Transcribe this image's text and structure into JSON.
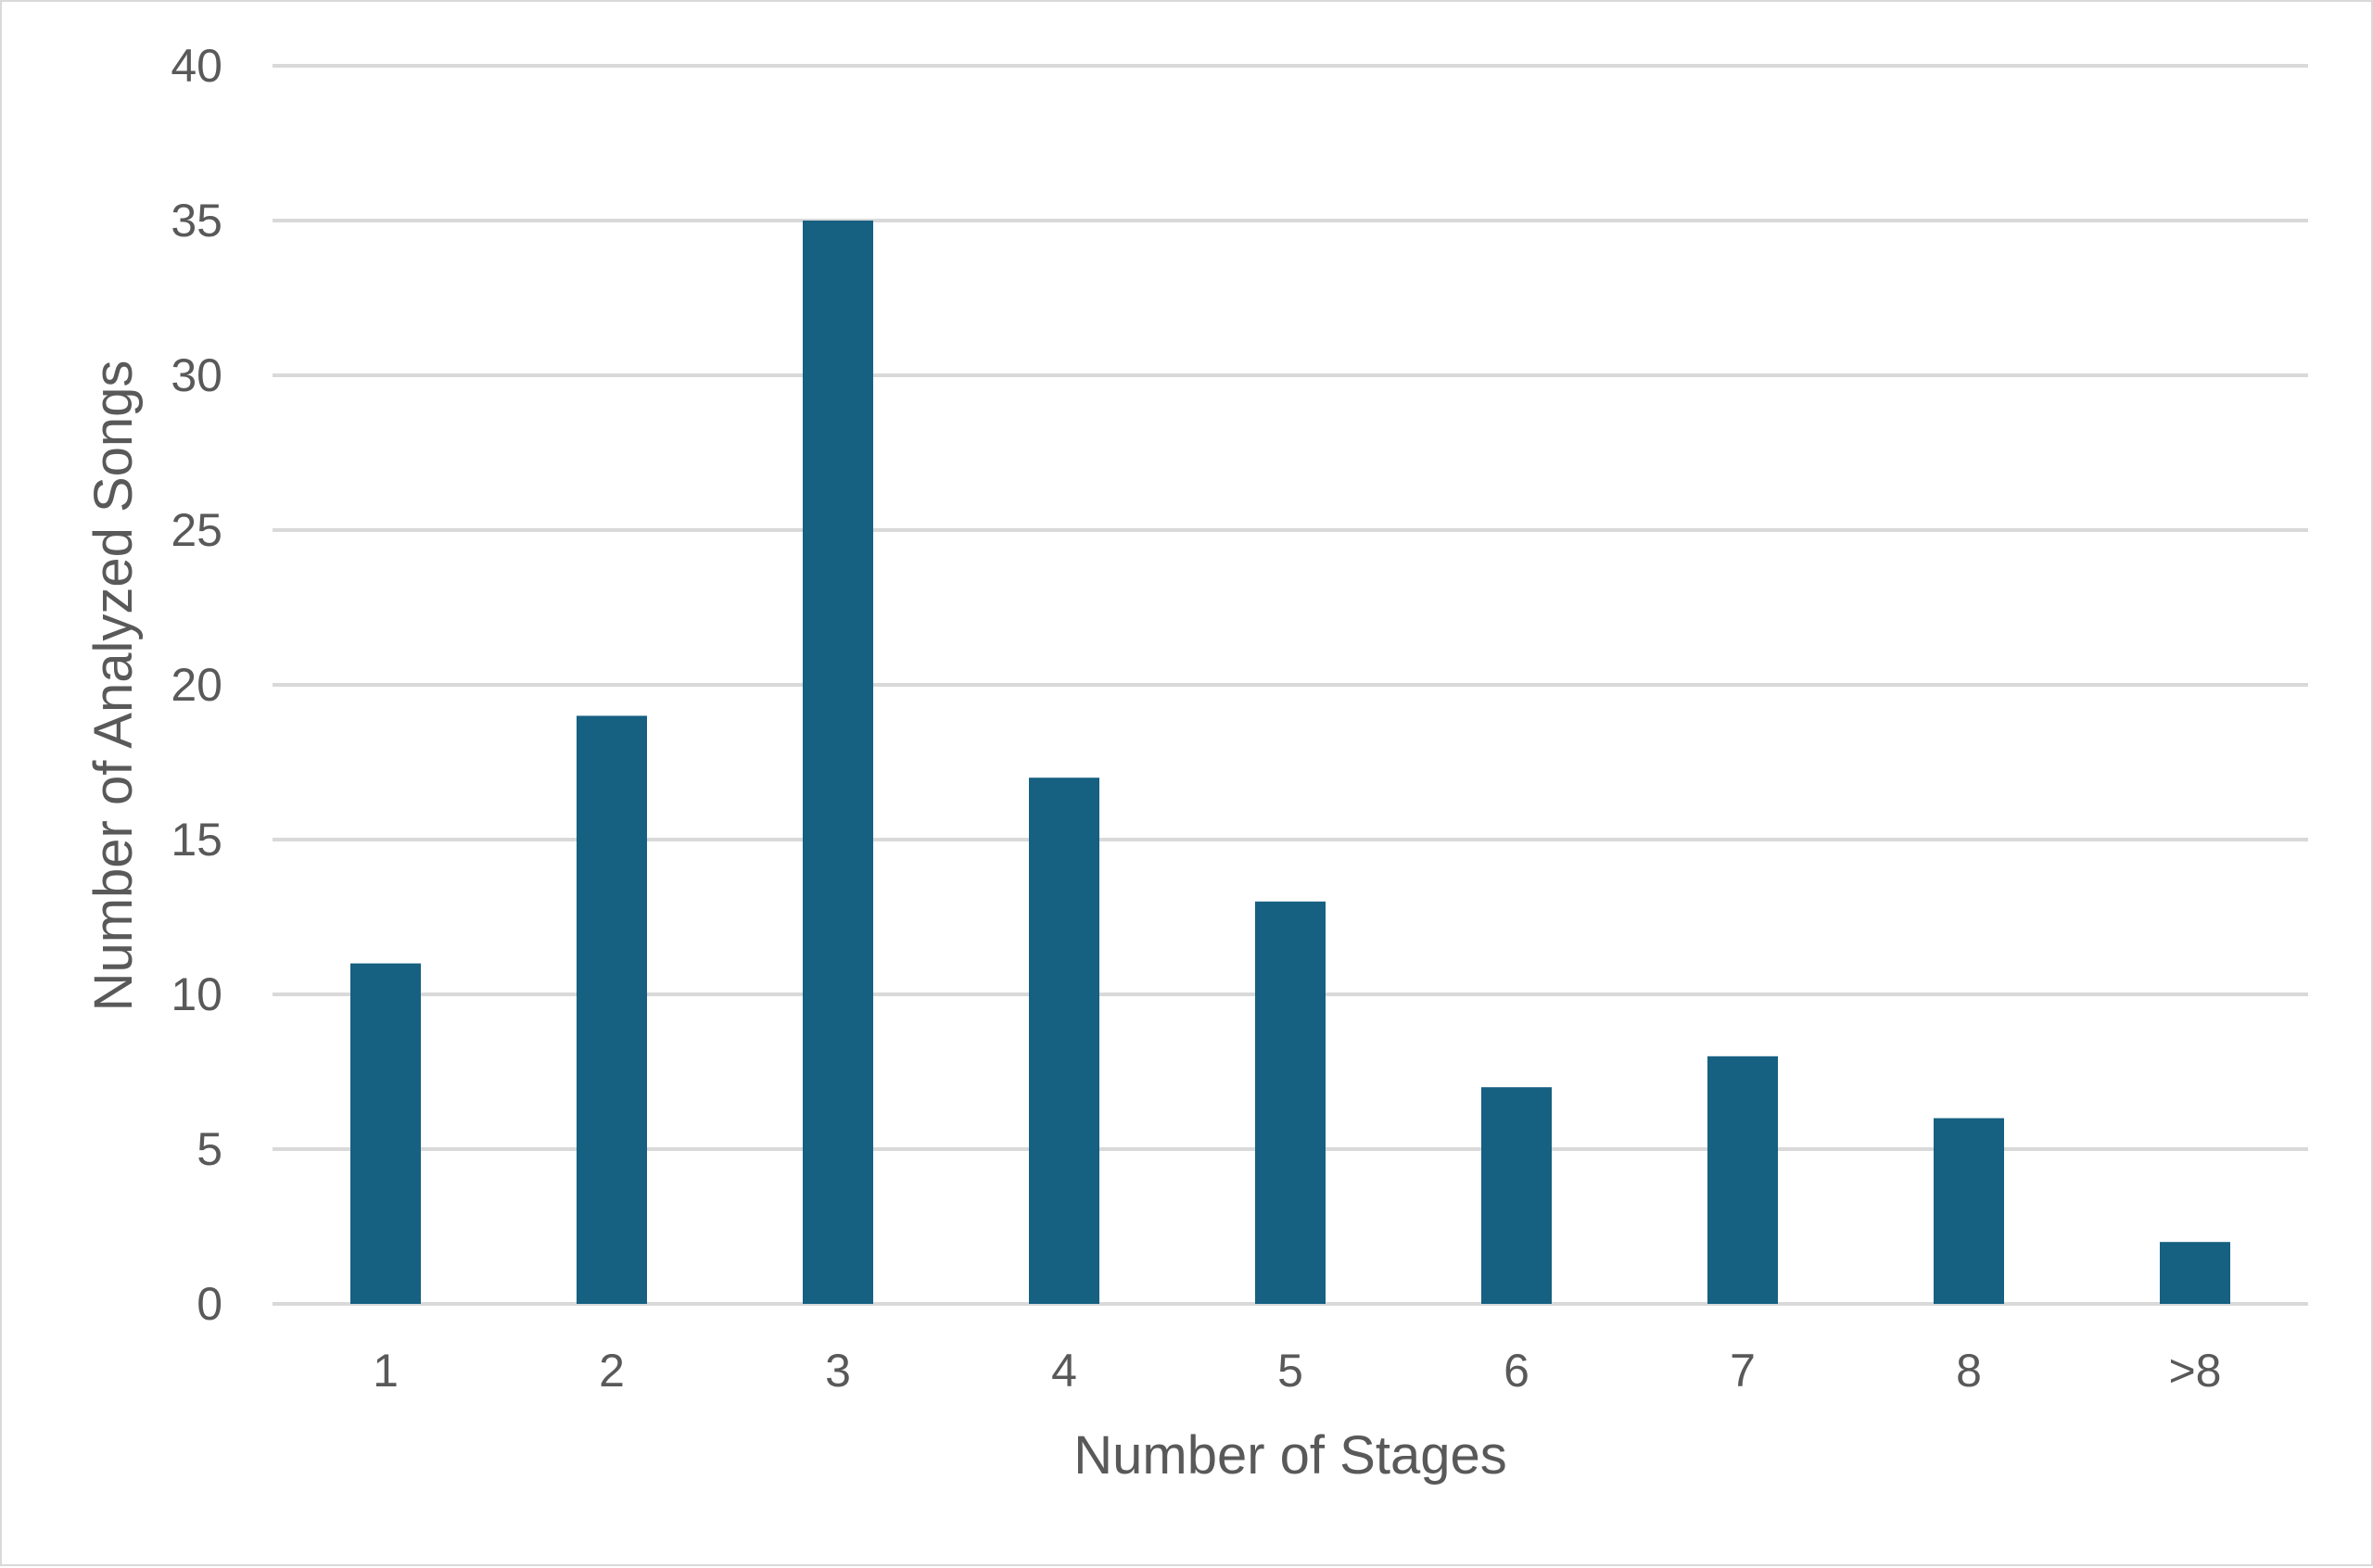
{
  "chart_data": {
    "type": "bar",
    "categories": [
      "1",
      "2",
      "3",
      "4",
      "5",
      "6",
      "7",
      "8",
      ">8"
    ],
    "series": [
      {
        "values": [
          11,
          19,
          35,
          17,
          13,
          7,
          8,
          6,
          2
        ]
      }
    ],
    "xlabel": "Number of Stages",
    "ylabel": "Number of Analyzed Songs",
    "ylim": [
      0,
      40
    ],
    "yticks": [
      0,
      5,
      10,
      15,
      20,
      25,
      30,
      35,
      40
    ],
    "grid": "horizontal",
    "legend": "none",
    "bar_color": "#166082"
  }
}
